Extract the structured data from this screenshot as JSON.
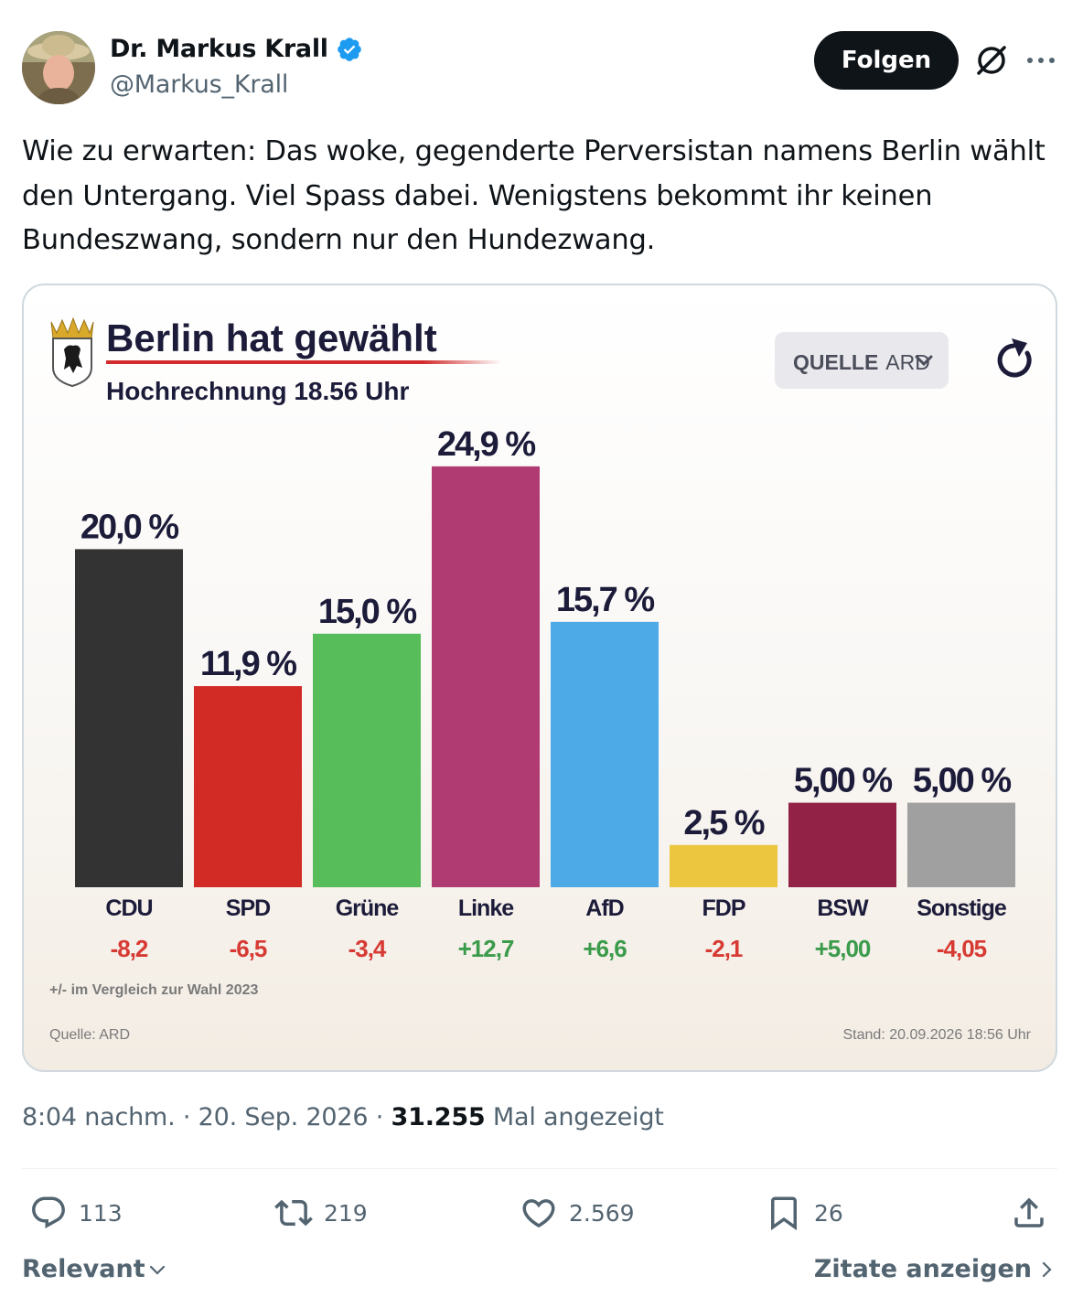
{
  "author": {
    "display_name": "Dr. Markus Krall",
    "handle": "@Markus_Krall",
    "verified": true
  },
  "follow_label": "Folgen",
  "tweet_text": "Wie zu erwarten: Das woke, gegenderte Perversistan namens Berlin wählt den Untergang. Viel Spass dabei. Wenigstens bekommt ihr keinen Bundeszwang, sondern nur den Hundezwang.",
  "chart_card": {
    "source_button_bold": "QUELLE",
    "source_button_value": "ARD"
  },
  "chart_data": {
    "type": "bar",
    "title": "Berlin hat gewählt",
    "subtitle": "Hochrechnung 18.56 Uhr",
    "categories": [
      "CDU",
      "SPD",
      "Grüne",
      "Linke",
      "AfD",
      "FDP",
      "BSW",
      "Sonstige"
    ],
    "values": [
      20.0,
      11.9,
      15.0,
      24.9,
      15.7,
      2.5,
      5.0,
      5.0
    ],
    "value_labels": [
      "20,0 %",
      "11,9 %",
      "15,0 %",
      "24,9 %",
      "15,7 %",
      "2,5 %",
      "5,00 %",
      "5,00 %"
    ],
    "changes": [
      -8.2,
      -6.5,
      -3.4,
      12.7,
      6.6,
      -2.1,
      5.0,
      -4.05
    ],
    "change_labels": [
      "-8,2",
      "-6,5",
      "-3,4",
      "+12,7",
      "+6,6",
      "-2,1",
      "+5,00",
      "-4,05"
    ],
    "colors": [
      "#333333",
      "#d22b26",
      "#57bd5b",
      "#b03b72",
      "#4eaae6",
      "#ecc63e",
      "#932346",
      "#a0a0a0"
    ],
    "positive_color": "#3a9b4a",
    "negative_color": "#d63a33",
    "footnote": "+/- im Vergleich zur Wahl 2023",
    "source": "Quelle: ARD",
    "timestamp": "Stand: 20.09.2026 18:56 Uhr",
    "ylim": [
      0,
      25
    ]
  },
  "meta": {
    "time": "8:04 nachm.",
    "date": "20. Sep. 2026",
    "views": "31.255",
    "views_suffix": "Mal angezeigt"
  },
  "actions": {
    "replies": "113",
    "reposts": "219",
    "likes": "2.569",
    "bookmarks": "26"
  },
  "sort_label": "Relevant",
  "quotes_label": "Zitate anzeigen",
  "accent_color": "#1d9bf0"
}
